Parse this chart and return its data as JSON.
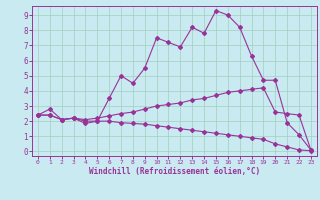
{
  "xlabel": "Windchill (Refroidissement éolien,°C)",
  "bg_color": "#c8eaf0",
  "grid_color": "#9fcfbe",
  "line_color": "#993399",
  "x_ticks": [
    0,
    1,
    2,
    3,
    4,
    5,
    6,
    7,
    8,
    9,
    10,
    11,
    12,
    13,
    14,
    15,
    16,
    17,
    18,
    19,
    20,
    21,
    22,
    23
  ],
  "y_ticks": [
    0,
    1,
    2,
    3,
    4,
    5,
    6,
    7,
    8,
    9
  ],
  "ylim": [
    -0.3,
    9.6
  ],
  "xlim": [
    -0.5,
    23.5
  ],
  "line1_x": [
    0,
    1,
    2,
    3,
    4,
    5,
    6,
    7,
    8,
    9,
    10,
    11,
    12,
    13,
    14,
    15,
    16,
    17,
    18,
    19,
    20,
    21,
    22,
    23
  ],
  "line1_y": [
    2.4,
    2.8,
    2.1,
    2.2,
    1.85,
    2.0,
    3.5,
    5.0,
    4.5,
    5.5,
    7.5,
    7.2,
    6.9,
    8.2,
    7.8,
    9.3,
    9.0,
    8.2,
    6.3,
    4.7,
    4.7,
    1.9,
    1.1,
    0.1
  ],
  "line2_x": [
    0,
    1,
    2,
    3,
    4,
    5,
    6,
    7,
    8,
    9,
    10,
    11,
    12,
    13,
    14,
    15,
    16,
    17,
    18,
    19,
    20,
    21,
    22,
    23
  ],
  "line2_y": [
    2.4,
    2.4,
    2.1,
    2.2,
    2.1,
    2.2,
    2.35,
    2.5,
    2.6,
    2.8,
    3.0,
    3.1,
    3.2,
    3.4,
    3.5,
    3.7,
    3.9,
    4.0,
    4.1,
    4.2,
    2.6,
    2.5,
    2.4,
    0.1
  ],
  "line3_x": [
    0,
    1,
    2,
    3,
    4,
    5,
    6,
    7,
    8,
    9,
    10,
    11,
    12,
    13,
    14,
    15,
    16,
    17,
    18,
    19,
    20,
    21,
    22,
    23
  ],
  "line3_y": [
    2.4,
    2.4,
    2.1,
    2.2,
    2.0,
    2.0,
    2.0,
    1.9,
    1.85,
    1.8,
    1.7,
    1.6,
    1.5,
    1.4,
    1.3,
    1.2,
    1.1,
    1.0,
    0.9,
    0.8,
    0.5,
    0.3,
    0.1,
    0.05
  ]
}
